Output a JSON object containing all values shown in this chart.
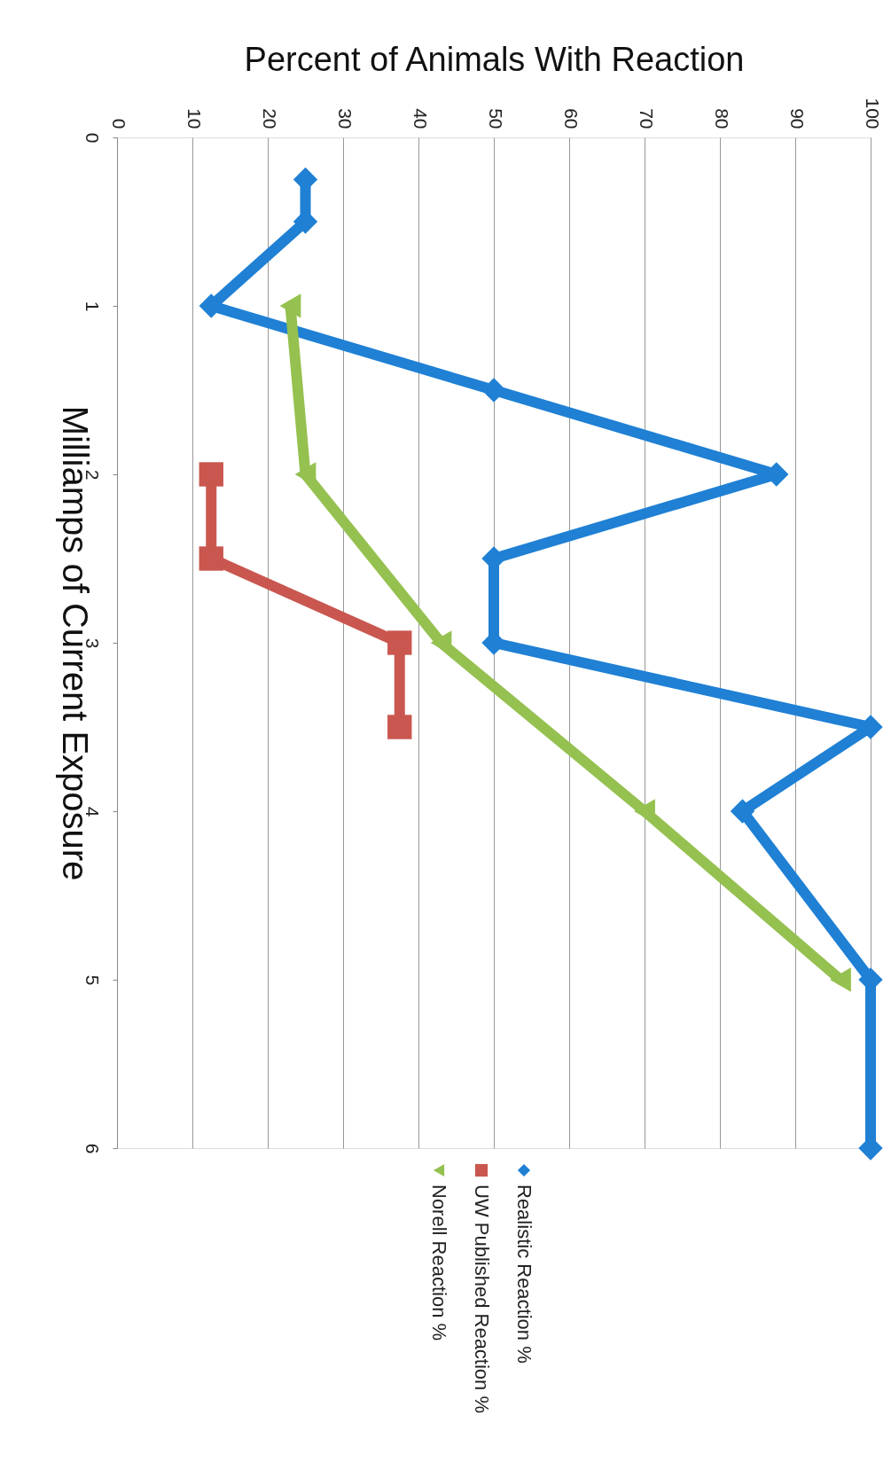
{
  "chart_data": {
    "type": "line",
    "xlabel": "Percent of Animals With Reaction",
    "ylabel": "Milliamps of Current Exposure",
    "xlim": [
      0,
      100
    ],
    "xticks": [
      0,
      10,
      20,
      30,
      40,
      50,
      60,
      70,
      80,
      90,
      100
    ],
    "ylim": [
      6,
      0
    ],
    "yticks": [
      0,
      1,
      2,
      3,
      4,
      5,
      6
    ],
    "grid": "x",
    "legend": "bottom",
    "series": [
      {
        "name": "Realistic Reaction %",
        "color": "#1f80d4",
        "marker": "diamond",
        "x": [
          25,
          25,
          12.5,
          50,
          87.5,
          50,
          50,
          100,
          83,
          100,
          100
        ],
        "values": [
          0.25,
          0.5,
          1,
          1.5,
          2,
          2.5,
          3,
          3.5,
          4,
          5,
          6
        ]
      },
      {
        "name": "UW Published Reaction %",
        "color": "#c9574f",
        "marker": "square",
        "x": [
          12.5,
          12.5,
          37.5,
          37.5
        ],
        "values": [
          2,
          2.5,
          3,
          3.5
        ]
      },
      {
        "name": "Norell Reaction %",
        "color": "#95c150",
        "marker": "triangle",
        "x": [
          23,
          25,
          43,
          70,
          96
        ],
        "values": [
          1,
          2,
          3,
          4,
          5
        ]
      }
    ]
  }
}
